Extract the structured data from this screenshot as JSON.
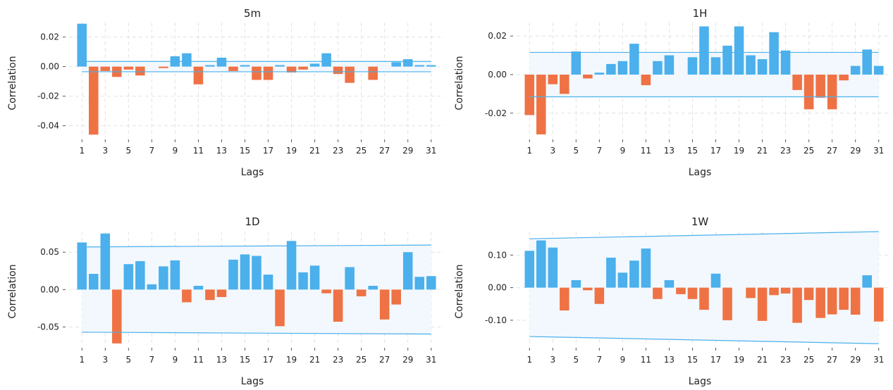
{
  "colors": {
    "positive": "#4BB0EC",
    "negative": "#EF7245",
    "band_line": "#4BB0EC",
    "band_fill": "#F2F8FD",
    "grid": "#E2E2E2"
  },
  "chart_data": [
    {
      "type": "bar",
      "title": "5m",
      "xlabel": "Lags",
      "ylabel": "Correlation",
      "x": [
        1,
        2,
        3,
        4,
        5,
        6,
        7,
        8,
        9,
        10,
        11,
        12,
        13,
        14,
        15,
        16,
        17,
        18,
        19,
        20,
        21,
        22,
        23,
        24,
        25,
        26,
        27,
        28,
        29,
        30,
        31
      ],
      "values": [
        0.029,
        -0.046,
        -0.003,
        -0.007,
        -0.002,
        -0.006,
        0.0,
        -0.001,
        0.007,
        0.009,
        -0.012,
        0.001,
        0.006,
        -0.003,
        0.001,
        -0.009,
        -0.009,
        0.001,
        -0.004,
        -0.002,
        0.002,
        0.009,
        -0.005,
        -0.011,
        0.0,
        -0.009,
        0.0,
        0.003,
        0.005,
        0.001,
        0.001
      ],
      "confidence_upper": [
        0.0035,
        0.0035
      ],
      "confidence_lower": [
        -0.0035,
        -0.0035
      ],
      "xticks": [
        "1",
        "3",
        "5",
        "7",
        "9",
        "11",
        "13",
        "15",
        "17",
        "19",
        "21",
        "23",
        "25",
        "27",
        "29",
        "31"
      ],
      "yticks": [
        0.02,
        0.0,
        -0.02,
        -0.04
      ],
      "ytick_labels": [
        "0.02",
        "0.00",
        "-0.02",
        "-0.04"
      ],
      "ylim": [
        -0.0478,
        0.0298
      ],
      "grid": true
    },
    {
      "type": "bar",
      "title": "1H",
      "xlabel": "Lags",
      "ylabel": "Correlation",
      "x": [
        1,
        2,
        3,
        4,
        5,
        6,
        7,
        8,
        9,
        10,
        11,
        12,
        13,
        14,
        15,
        16,
        17,
        18,
        19,
        20,
        21,
        22,
        23,
        24,
        25,
        26,
        27,
        28,
        29,
        30,
        31
      ],
      "values": [
        -0.021,
        -0.031,
        -0.005,
        -0.01,
        0.012,
        -0.002,
        0.001,
        0.0055,
        0.007,
        0.016,
        -0.0055,
        0.007,
        0.01,
        0.0,
        0.009,
        0.025,
        0.009,
        0.015,
        0.025,
        0.01,
        0.008,
        0.022,
        0.0125,
        -0.008,
        -0.018,
        -0.012,
        -0.018,
        -0.003,
        0.0045,
        0.013,
        0.0045
      ],
      "confidence_upper": [
        0.0115,
        0.0115
      ],
      "confidence_lower": [
        -0.0115,
        -0.0115
      ],
      "xticks": [
        "1",
        "3",
        "5",
        "7",
        "9",
        "11",
        "13",
        "15",
        "17",
        "19",
        "21",
        "23",
        "25",
        "27",
        "29",
        "31"
      ],
      "yticks": [
        0.02,
        0.0,
        -0.02
      ],
      "ytick_labels": [
        "0.02",
        "0.00",
        "-0.02"
      ],
      "ylim": [
        -0.0325,
        0.027
      ],
      "grid": true
    },
    {
      "type": "bar",
      "title": "1D",
      "xlabel": "Lags",
      "ylabel": "Correlation",
      "x": [
        1,
        2,
        3,
        4,
        5,
        6,
        7,
        8,
        9,
        10,
        11,
        12,
        13,
        14,
        15,
        16,
        17,
        18,
        19,
        20,
        21,
        22,
        23,
        24,
        25,
        26,
        27,
        28,
        29,
        30,
        31
      ],
      "values": [
        0.063,
        0.021,
        0.075,
        -0.072,
        0.034,
        0.038,
        0.007,
        0.031,
        0.039,
        -0.017,
        0.005,
        -0.014,
        -0.01,
        0.04,
        0.047,
        0.045,
        0.02,
        -0.049,
        0.065,
        0.023,
        0.032,
        -0.005,
        -0.043,
        0.03,
        -0.009,
        0.005,
        -0.04,
        -0.02,
        0.05,
        0.017,
        0.018
      ],
      "confidence_upper": [
        0.057,
        0.0595
      ],
      "confidence_lower": [
        -0.057,
        -0.0595
      ],
      "xticks": [
        "1",
        "3",
        "5",
        "7",
        "9",
        "11",
        "13",
        "15",
        "17",
        "19",
        "21",
        "23",
        "25",
        "27",
        "29",
        "31"
      ],
      "yticks": [
        0.05,
        0.0,
        -0.05
      ],
      "ytick_labels": [
        "0.05",
        "0.00",
        "-0.05"
      ],
      "ylim": [
        -0.075,
        0.0775
      ],
      "grid": true
    },
    {
      "type": "bar",
      "title": "1W",
      "xlabel": "Lags",
      "ylabel": "Correlation",
      "x": [
        1,
        2,
        3,
        4,
        5,
        6,
        7,
        8,
        9,
        10,
        11,
        12,
        13,
        14,
        15,
        16,
        17,
        18,
        19,
        20,
        21,
        22,
        23,
        24,
        25,
        26,
        27,
        28,
        29,
        30,
        31
      ],
      "values": [
        0.113,
        0.145,
        0.123,
        -0.07,
        0.023,
        -0.008,
        -0.05,
        0.092,
        0.046,
        0.083,
        0.12,
        -0.035,
        0.023,
        -0.02,
        -0.035,
        -0.068,
        0.043,
        -0.1,
        0.0,
        -0.032,
        -0.102,
        -0.023,
        -0.018,
        -0.108,
        -0.038,
        -0.093,
        -0.082,
        -0.068,
        -0.083,
        0.038,
        -0.104
      ],
      "confidence_upper": [
        0.15,
        0.172
      ],
      "confidence_lower": [
        -0.15,
        -0.172
      ],
      "xticks": [
        "1",
        "3",
        "5",
        "7",
        "9",
        "11",
        "13",
        "15",
        "17",
        "19",
        "21",
        "23",
        "25",
        "27",
        "29",
        "31"
      ],
      "yticks": [
        0.1,
        0.0,
        -0.1
      ],
      "ytick_labels": [
        "0.10",
        "0.00",
        "-0.10"
      ],
      "ylim": [
        -0.178,
        0.172
      ],
      "grid": true
    }
  ]
}
